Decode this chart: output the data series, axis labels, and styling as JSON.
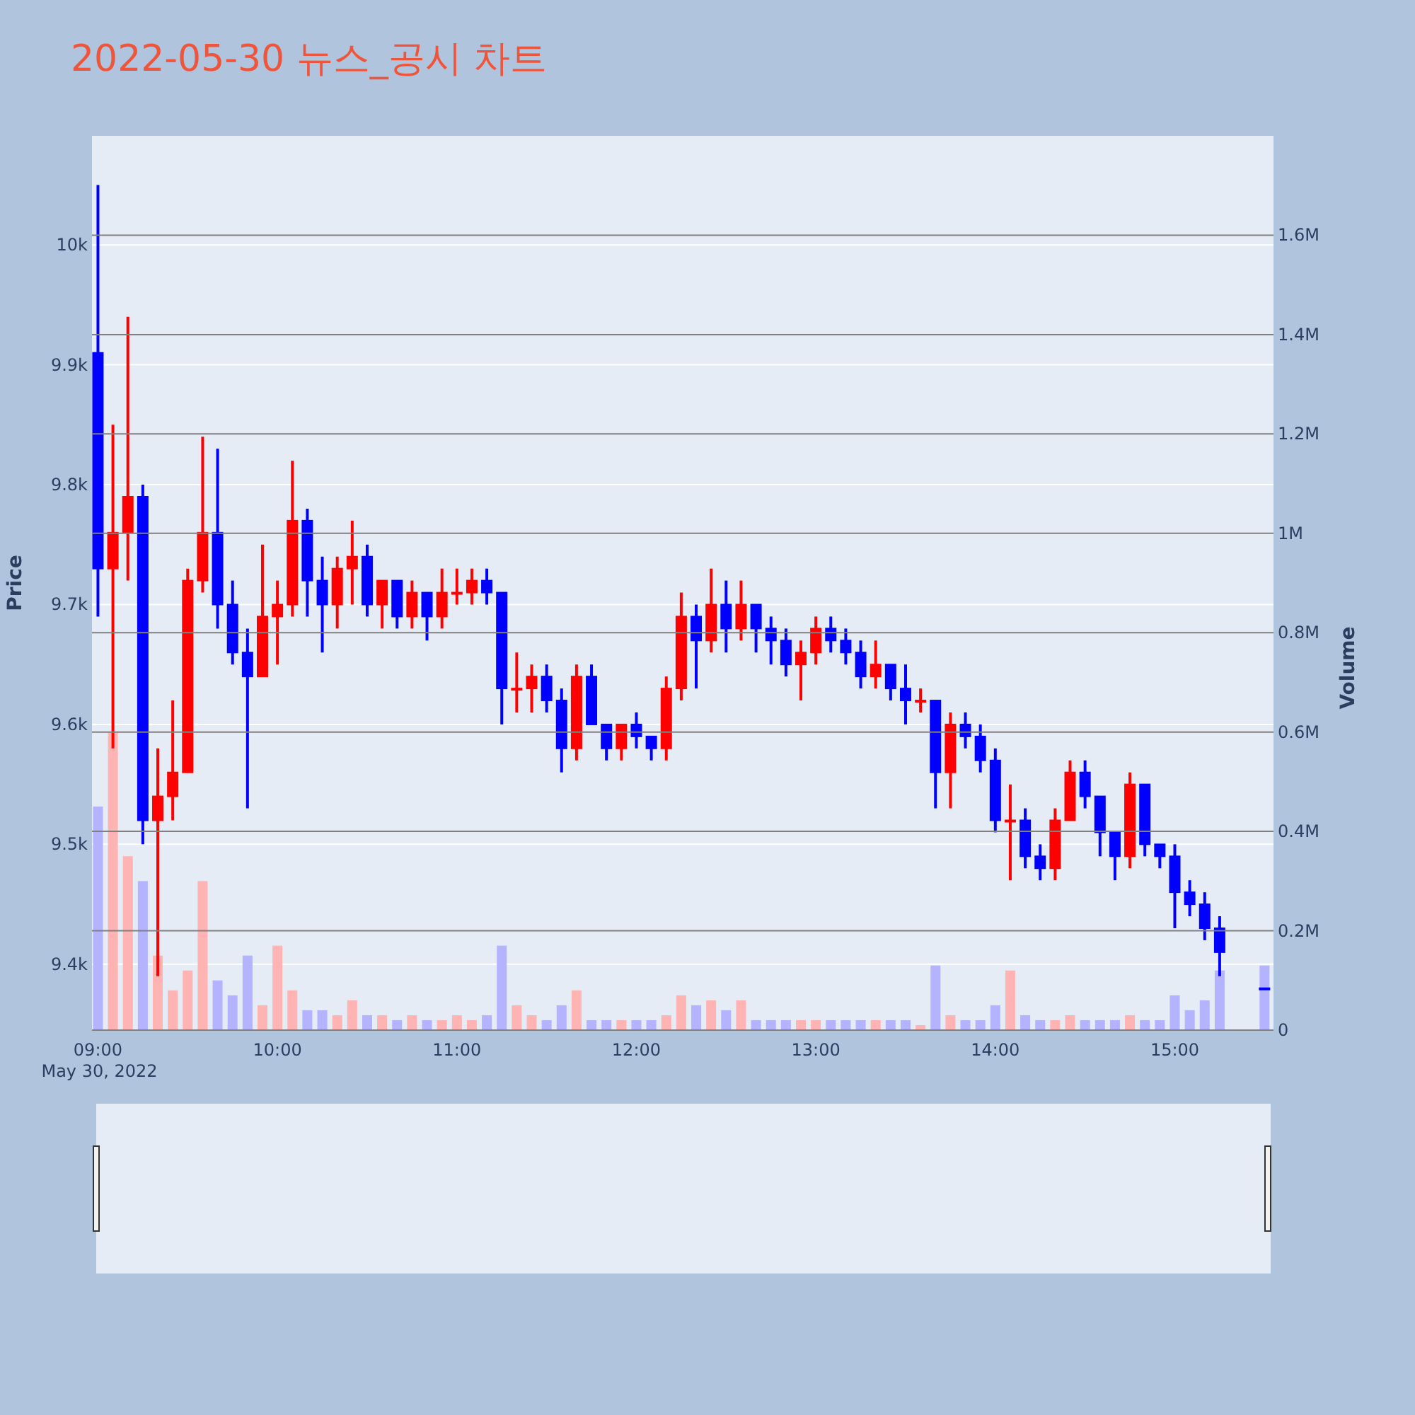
{
  "chart_data": {
    "type": "candlestick",
    "title": "2022-05-30 뉴스_공시 차트",
    "ylabel": "Price",
    "y2label": "Volume",
    "colors": [
      "#0000ff",
      "#ff0000",
      "#ff0000",
      "#0000ff",
      "#ff0000",
      "#ff0000",
      "#ff0000",
      "#ff0000",
      "#0000ff",
      "#0000ff",
      "#0000ff",
      "#ff0000",
      "#ff0000",
      "#ff0000",
      "#0000ff",
      "#0000ff",
      "#ff0000",
      "#ff0000",
      "#0000ff",
      "#ff0000",
      "#0000ff",
      "#ff0000",
      "#0000ff",
      "#ff0000",
      "#ff0000",
      "#ff0000",
      "#0000ff",
      "#0000ff",
      "#ff0000",
      "#ff0000",
      "#0000ff",
      "#0000ff",
      "#ff0000",
      "#0000ff",
      "#0000ff",
      "#ff0000",
      "#0000ff",
      "#0000ff",
      "#ff0000",
      "#ff0000",
      "#0000ff",
      "#ff0000",
      "#0000ff",
      "#ff0000",
      "#0000ff",
      "#0000ff",
      "#0000ff",
      "#ff0000",
      "#ff0000",
      "#0000ff",
      "#0000ff",
      "#0000ff",
      "#ff0000",
      "#0000ff",
      "#0000ff",
      "#ff0000",
      "#0000ff",
      "#ff0000",
      "#0000ff",
      "#0000ff",
      "#0000ff",
      "#ff0000",
      "#0000ff",
      "#0000ff",
      "#ff0000",
      "#ff0000",
      "#0000ff",
      "#0000ff",
      "#0000ff",
      "#ff0000",
      "#0000ff",
      "#0000ff",
      "#0000ff",
      "#0000ff",
      "#0000ff",
      "#0000ff",
      "#0000ff"
    ],
    "grid": "y",
    "x": [
      "2022-05-30T09:00",
      "2022-05-30T09:05",
      "2022-05-30T09:10",
      "2022-05-30T09:15",
      "2022-05-30T09:20",
      "2022-05-30T09:25",
      "2022-05-30T09:30",
      "2022-05-30T09:35",
      "2022-05-30T09:40",
      "2022-05-30T09:45",
      "2022-05-30T09:50",
      "2022-05-30T09:55",
      "2022-05-30T10:00",
      "2022-05-30T10:05",
      "2022-05-30T10:10",
      "2022-05-30T10:15",
      "2022-05-30T10:20",
      "2022-05-30T10:25",
      "2022-05-30T10:30",
      "2022-05-30T10:35",
      "2022-05-30T10:40",
      "2022-05-30T10:45",
      "2022-05-30T10:50",
      "2022-05-30T10:55",
      "2022-05-30T11:00",
      "2022-05-30T11:05",
      "2022-05-30T11:10",
      "2022-05-30T11:15",
      "2022-05-30T11:20",
      "2022-05-30T11:25",
      "2022-05-30T11:30",
      "2022-05-30T11:35",
      "2022-05-30T11:40",
      "2022-05-30T11:45",
      "2022-05-30T11:50",
      "2022-05-30T11:55",
      "2022-05-30T12:00",
      "2022-05-30T12:05",
      "2022-05-30T12:10",
      "2022-05-30T12:15",
      "2022-05-30T12:20",
      "2022-05-30T12:25",
      "2022-05-30T12:30",
      "2022-05-30T12:35",
      "2022-05-30T12:40",
      "2022-05-30T12:45",
      "2022-05-30T12:50",
      "2022-05-30T12:55",
      "2022-05-30T13:00",
      "2022-05-30T13:05",
      "2022-05-30T13:10",
      "2022-05-30T13:15",
      "2022-05-30T13:20",
      "2022-05-30T13:25",
      "2022-05-30T13:30",
      "2022-05-30T13:35",
      "2022-05-30T13:40",
      "2022-05-30T13:45",
      "2022-05-30T13:50",
      "2022-05-30T13:55",
      "2022-05-30T14:00",
      "2022-05-30T14:05",
      "2022-05-30T14:10",
      "2022-05-30T14:15",
      "2022-05-30T14:20",
      "2022-05-30T14:25",
      "2022-05-30T14:30",
      "2022-05-30T14:35",
      "2022-05-30T14:40",
      "2022-05-30T14:45",
      "2022-05-30T14:50",
      "2022-05-30T14:55",
      "2022-05-30T15:00",
      "2022-05-30T15:05",
      "2022-05-30T15:10",
      "2022-05-30T15:15",
      "2022-05-30T15:30"
    ],
    "ohlc": [
      [
        9910,
        10050,
        9690,
        9730
      ],
      [
        9730,
        9850,
        9580,
        9760
      ],
      [
        9760,
        9940,
        9720,
        9790
      ],
      [
        9790,
        9800,
        9500,
        9520
      ],
      [
        9520,
        9580,
        9390,
        9540
      ],
      [
        9540,
        9620,
        9520,
        9560
      ],
      [
        9560,
        9730,
        9560,
        9720
      ],
      [
        9720,
        9840,
        9710,
        9760
      ],
      [
        9760,
        9830,
        9680,
        9700
      ],
      [
        9700,
        9720,
        9650,
        9660
      ],
      [
        9660,
        9680,
        9530,
        9640
      ],
      [
        9640,
        9750,
        9640,
        9690
      ],
      [
        9690,
        9720,
        9650,
        9700
      ],
      [
        9700,
        9820,
        9690,
        9770
      ],
      [
        9770,
        9780,
        9690,
        9720
      ],
      [
        9720,
        9740,
        9660,
        9700
      ],
      [
        9700,
        9740,
        9680,
        9730
      ],
      [
        9730,
        9770,
        9700,
        9740
      ],
      [
        9740,
        9750,
        9690,
        9700
      ],
      [
        9700,
        9720,
        9680,
        9720
      ],
      [
        9720,
        9720,
        9680,
        9690
      ],
      [
        9690,
        9720,
        9680,
        9710
      ],
      [
        9710,
        9710,
        9670,
        9690
      ],
      [
        9690,
        9730,
        9680,
        9710
      ],
      [
        9710,
        9730,
        9700,
        9710
      ],
      [
        9710,
        9730,
        9700,
        9720
      ],
      [
        9720,
        9730,
        9700,
        9710
      ],
      [
        9710,
        9710,
        9600,
        9630
      ],
      [
        9630,
        9660,
        9610,
        9630
      ],
      [
        9630,
        9650,
        9610,
        9640
      ],
      [
        9640,
        9650,
        9610,
        9620
      ],
      [
        9620,
        9630,
        9560,
        9580
      ],
      [
        9580,
        9650,
        9570,
        9640
      ],
      [
        9640,
        9650,
        9600,
        9600
      ],
      [
        9600,
        9600,
        9570,
        9580
      ],
      [
        9580,
        9600,
        9570,
        9600
      ],
      [
        9600,
        9610,
        9580,
        9590
      ],
      [
        9590,
        9590,
        9570,
        9580
      ],
      [
        9580,
        9640,
        9570,
        9630
      ],
      [
        9630,
        9710,
        9620,
        9690
      ],
      [
        9690,
        9700,
        9630,
        9670
      ],
      [
        9670,
        9730,
        9660,
        9700
      ],
      [
        9700,
        9720,
        9660,
        9680
      ],
      [
        9680,
        9720,
        9670,
        9700
      ],
      [
        9700,
        9700,
        9660,
        9680
      ],
      [
        9680,
        9690,
        9650,
        9670
      ],
      [
        9670,
        9680,
        9640,
        9650
      ],
      [
        9650,
        9670,
        9620,
        9660
      ],
      [
        9660,
        9690,
        9650,
        9680
      ],
      [
        9680,
        9690,
        9660,
        9670
      ],
      [
        9670,
        9680,
        9650,
        9660
      ],
      [
        9660,
        9670,
        9630,
        9640
      ],
      [
        9640,
        9670,
        9630,
        9650
      ],
      [
        9650,
        9650,
        9620,
        9630
      ],
      [
        9630,
        9650,
        9600,
        9620
      ],
      [
        9620,
        9630,
        9610,
        9620
      ],
      [
        9620,
        9620,
        9530,
        9560
      ],
      [
        9560,
        9610,
        9530,
        9600
      ],
      [
        9600,
        9610,
        9580,
        9590
      ],
      [
        9590,
        9600,
        9560,
        9570
      ],
      [
        9570,
        9580,
        9510,
        9520
      ],
      [
        9520,
        9550,
        9470,
        9520
      ],
      [
        9520,
        9530,
        9480,
        9490
      ],
      [
        9490,
        9500,
        9470,
        9480
      ],
      [
        9480,
        9530,
        9470,
        9520
      ],
      [
        9520,
        9570,
        9520,
        9560
      ],
      [
        9560,
        9570,
        9530,
        9540
      ],
      [
        9540,
        9540,
        9490,
        9510
      ],
      [
        9510,
        9510,
        9470,
        9490
      ],
      [
        9490,
        9560,
        9480,
        9550
      ],
      [
        9550,
        9550,
        9490,
        9500
      ],
      [
        9500,
        9500,
        9480,
        9490
      ],
      [
        9490,
        9500,
        9430,
        9460
      ],
      [
        9460,
        9470,
        9440,
        9450
      ],
      [
        9450,
        9460,
        9420,
        9430
      ],
      [
        9430,
        9440,
        9390,
        9410
      ],
      [
        9380,
        9380,
        9380,
        9380
      ]
    ],
    "series": [
      {
        "type": "bar",
        "axis": "y2",
        "colors": [
          "#b3b3ff",
          "#ffb3b3",
          "#ffb3b3",
          "#b3b3ff",
          "#ffb3b3",
          "#ffb3b3",
          "#ffb3b3",
          "#ffb3b3",
          "#b3b3ff",
          "#b3b3ff",
          "#b3b3ff",
          "#ffb3b3",
          "#ffb3b3",
          "#ffb3b3",
          "#b3b3ff",
          "#b3b3ff",
          "#ffb3b3",
          "#ffb3b3",
          "#b3b3ff",
          "#ffb3b3",
          "#b3b3ff",
          "#ffb3b3",
          "#b3b3ff",
          "#ffb3b3",
          "#ffb3b3",
          "#ffb3b3",
          "#b3b3ff",
          "#b3b3ff",
          "#ffb3b3",
          "#ffb3b3",
          "#b3b3ff",
          "#b3b3ff",
          "#ffb3b3",
          "#b3b3ff",
          "#b3b3ff",
          "#ffb3b3",
          "#b3b3ff",
          "#b3b3ff",
          "#ffb3b3",
          "#ffb3b3",
          "#b3b3ff",
          "#ffb3b3",
          "#b3b3ff",
          "#ffb3b3",
          "#b3b3ff",
          "#b3b3ff",
          "#b3b3ff",
          "#ffb3b3",
          "#ffb3b3",
          "#b3b3ff",
          "#b3b3ff",
          "#b3b3ff",
          "#ffb3b3",
          "#b3b3ff",
          "#b3b3ff",
          "#ffb3b3",
          "#b3b3ff",
          "#ffb3b3",
          "#b3b3ff",
          "#b3b3ff",
          "#b3b3ff",
          "#ffb3b3",
          "#b3b3ff",
          "#b3b3ff",
          "#ffb3b3",
          "#ffb3b3",
          "#b3b3ff",
          "#b3b3ff",
          "#b3b3ff",
          "#ffb3b3",
          "#b3b3ff",
          "#b3b3ff",
          "#b3b3ff",
          "#b3b3ff",
          "#b3b3ff",
          "#b3b3ff",
          "#b3b3ff"
        ],
        "values": [
          450000,
          600000,
          350000,
          300000,
          150000,
          80000,
          120000,
          300000,
          100000,
          70000,
          150000,
          50000,
          170000,
          80000,
          40000,
          40000,
          30000,
          60000,
          30000,
          30000,
          20000,
          30000,
          20000,
          20000,
          30000,
          20000,
          30000,
          170000,
          50000,
          30000,
          20000,
          50000,
          80000,
          20000,
          20000,
          20000,
          20000,
          20000,
          30000,
          70000,
          50000,
          60000,
          40000,
          60000,
          20000,
          20000,
          20000,
          20000,
          20000,
          20000,
          20000,
          20000,
          20000,
          20000,
          20000,
          10000,
          130000,
          30000,
          20000,
          20000,
          50000,
          120000,
          30000,
          20000,
          20000,
          30000,
          20000,
          20000,
          20000,
          30000,
          20000,
          20000,
          70000,
          40000,
          60000,
          120000,
          130000
        ]
      }
    ],
    "xlim": [
      "2022-05-30T08:58",
      "2022-05-30T15:33"
    ],
    "xticks": [
      {
        "value": "2022-05-30T09:00",
        "label": "09:00\nMay 30, 2022"
      },
      {
        "value": "2022-05-30T10:00",
        "label": "10:00"
      },
      {
        "value": "2022-05-30T11:00",
        "label": "11:00"
      },
      {
        "value": "2022-05-30T12:00",
        "label": "12:00"
      },
      {
        "value": "2022-05-30T13:00",
        "label": "13:00"
      },
      {
        "value": "2022-05-30T14:00",
        "label": "14:00"
      },
      {
        "value": "2022-05-30T15:00",
        "label": "15:00"
      }
    ],
    "ylim": [
      9345,
      10091
    ],
    "yticks": [
      {
        "value": 9400,
        "label": "9.4k"
      },
      {
        "value": 9500,
        "label": "9.5k"
      },
      {
        "value": 9600,
        "label": "9.6k"
      },
      {
        "value": 9700,
        "label": "9.7k"
      },
      {
        "value": 9800,
        "label": "9.8k"
      },
      {
        "value": 9900,
        "label": "9.9k"
      },
      {
        "value": 10000,
        "label": "10k"
      }
    ],
    "y2lim": [
      0,
      1800000
    ],
    "y2ticks": [
      0,
      {
        "value": 200000,
        "label": "0.2M"
      },
      {
        "value": 400000,
        "label": "0.4M"
      },
      {
        "value": 600000,
        "label": "0.6M"
      },
      {
        "value": 800000,
        "label": "0.8M"
      },
      {
        "value": 1000000,
        "label": "1M"
      },
      {
        "value": 1200000,
        "label": "1.2M"
      },
      {
        "value": 1400000,
        "label": "1.4M"
      },
      {
        "value": 1600000,
        "label": "1.6M"
      }
    ]
  }
}
